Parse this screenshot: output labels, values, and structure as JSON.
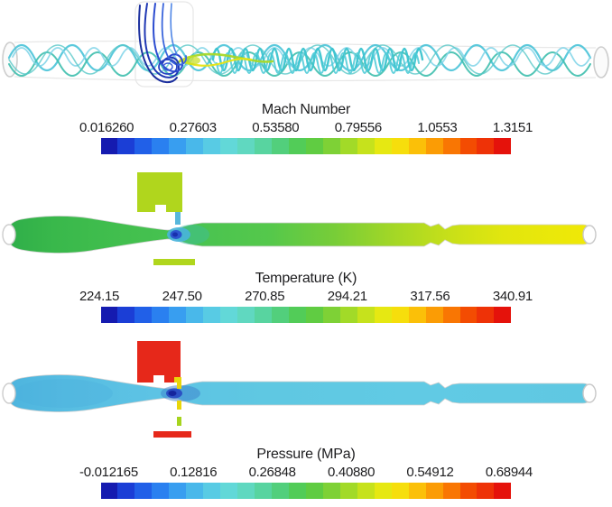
{
  "panels": [
    {
      "title": "Mach Number",
      "ticks": [
        "0.016260",
        "0.27603",
        "0.53580",
        "0.79556",
        "1.0553",
        "1.3151"
      ]
    },
    {
      "title": "Temperature (K)",
      "ticks": [
        "224.15",
        "247.50",
        "270.85",
        "294.21",
        "317.56",
        "340.91"
      ]
    },
    {
      "title": "Pressure (MPa)",
      "ticks": [
        "-0.012165",
        "0.12816",
        "0.26848",
        "0.40880",
        "0.54912",
        "0.68944"
      ]
    }
  ],
  "colorbar": {
    "colors": [
      "#151bb0",
      "#1b3ed6",
      "#2160e8",
      "#2a80f0",
      "#389ef0",
      "#49b8ea",
      "#58cbe4",
      "#62d8d8",
      "#60d8c0",
      "#58d4a0",
      "#52cf7c",
      "#52cc58",
      "#60cc42",
      "#7ed136",
      "#a2da28",
      "#c6e21c",
      "#e6e812",
      "#f6de0c",
      "#fbc008",
      "#fb9c05",
      "#f97603",
      "#f34c02",
      "#ee3207",
      "#e5120b"
    ]
  },
  "chart_data": [
    {
      "type": "heatmap",
      "title": "Mach Number",
      "colormap": "rainbow",
      "colorbar_ticks": [
        0.01626,
        0.27603,
        0.5358,
        0.79556,
        1.0553,
        1.3151
      ],
      "range": [
        0.01626,
        1.3151
      ],
      "legend_position": "bottom",
      "description": "Swirling streamline visualization of Mach number through an ejector: cyan/teal helical streamlines in the horizontal tube, dark blue jet entering from the vertical inlet, green-yellow streaks at the mixing throat."
    },
    {
      "type": "heatmap",
      "title": "Temperature (K)",
      "colormap": "rainbow",
      "colorbar_ticks": [
        224.15,
        247.5,
        270.85,
        294.21,
        317.56,
        340.91
      ],
      "range": [
        224.15,
        340.91
      ],
      "legend_position": "bottom",
      "description": "Temperature contour of ejector cross-section: green diverging inlet bulge, cold dark-blue spot at throat, body warming from green to yellow toward the outlet; yellow-green inlet block above and bar below."
    },
    {
      "type": "heatmap",
      "title": "Pressure (MPa)",
      "colormap": "rainbow",
      "colorbar_ticks": [
        -0.012165,
        0.12816,
        0.26848,
        0.4088,
        0.54912,
        0.68944
      ],
      "range": [
        -0.012165,
        0.68944
      ],
      "legend_position": "bottom",
      "description": "Pressure contour of ejector cross-section: nearly uniform light cyan body with low-pressure dark navy spot at throat; high-pressure red inlet block above and red bar below, yellow needle through throat."
    }
  ]
}
